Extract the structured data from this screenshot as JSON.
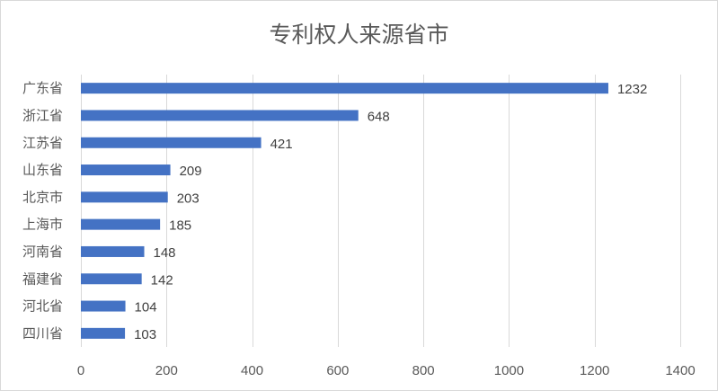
{
  "chart_data": {
    "type": "bar",
    "orientation": "horizontal",
    "title": "专利权人来源省市",
    "categories": [
      "广东省",
      "浙江省",
      "江苏省",
      "山东省",
      "北京市",
      "上海市",
      "河南省",
      "福建省",
      "河北省",
      "四川省"
    ],
    "values": [
      1232,
      648,
      421,
      209,
      203,
      185,
      148,
      142,
      104,
      103
    ],
    "xlim": [
      0,
      1400
    ],
    "x_ticks": [
      "0",
      "200",
      "400",
      "600",
      "800",
      "1000",
      "1200",
      "1400"
    ],
    "grid": true,
    "legend": "none",
    "bar_color": "#4472c4",
    "grid_color": "#d9d9d9"
  }
}
